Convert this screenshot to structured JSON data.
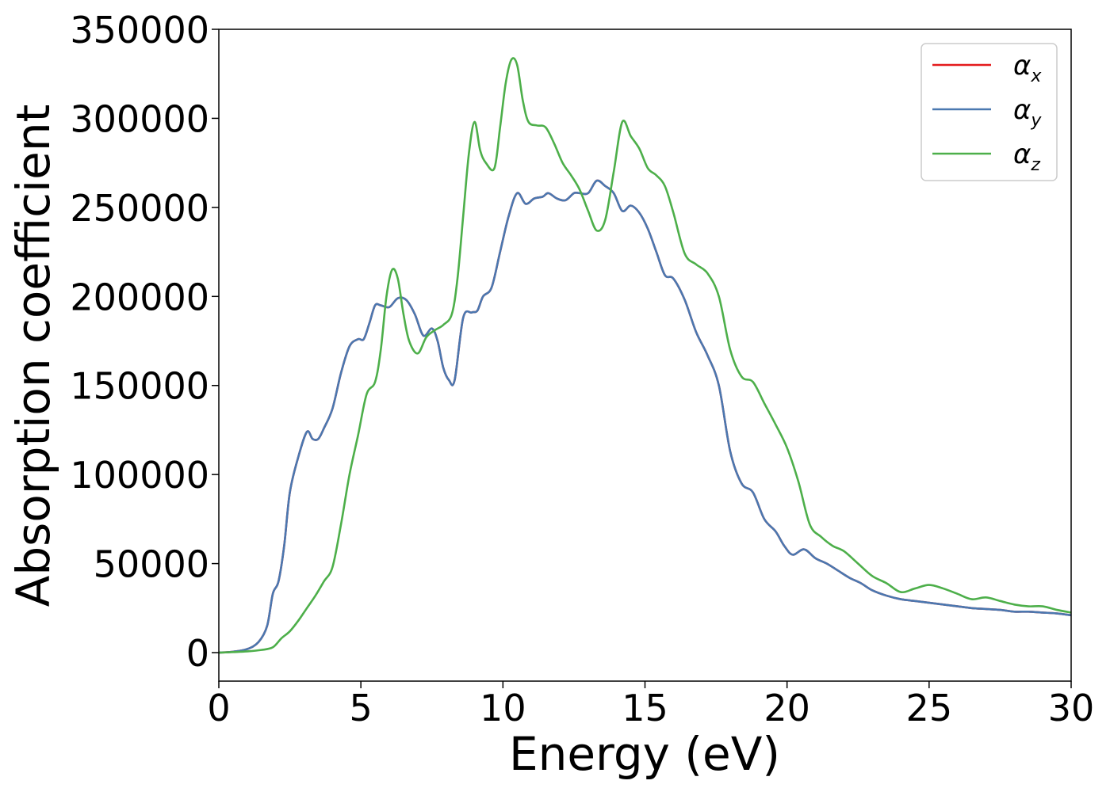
{
  "chart_data": {
    "type": "line",
    "xlabel": "Energy (eV)",
    "ylabel": "Absorption coefficient",
    "xlim": [
      0,
      30
    ],
    "ylim": [
      -16000,
      350000
    ],
    "xticks": [
      0,
      5,
      10,
      15,
      20,
      25,
      30
    ],
    "yticks": [
      0,
      50000,
      100000,
      150000,
      200000,
      250000,
      300000,
      350000
    ],
    "xtick_labels": [
      "0",
      "5",
      "10",
      "15",
      "20",
      "25",
      "30"
    ],
    "ytick_labels": [
      "0",
      "50000",
      "100000",
      "150000",
      "200000",
      "250000",
      "300000",
      "350000"
    ],
    "grid": false,
    "legend_position": "top-right",
    "series": [
      {
        "name": "α_x",
        "label_base": "α",
        "label_sub": "x",
        "color": "#e41a1c",
        "x": [
          0,
          0.5,
          1,
          1.4,
          1.7,
          1.9,
          2.1,
          2.3,
          2.5,
          2.8,
          3.1,
          3.3,
          3.5,
          3.7,
          4,
          4.3,
          4.6,
          4.9,
          5.1,
          5.3,
          5.5,
          5.7,
          6,
          6.3,
          6.6,
          6.9,
          7.2,
          7.5,
          7.7,
          7.9,
          8.1,
          8.3,
          8.6,
          8.9,
          9.1,
          9.3,
          9.6,
          9.9,
          10.2,
          10.5,
          10.8,
          11.1,
          11.4,
          11.6,
          11.9,
          12.2,
          12.5,
          12.7,
          13,
          13.3,
          13.6,
          13.9,
          14.2,
          14.5,
          14.8,
          15.1,
          15.4,
          15.7,
          16,
          16.4,
          16.8,
          17.2,
          17.6,
          18,
          18.4,
          18.8,
          19.2,
          19.6,
          19.9,
          20.2,
          20.6,
          21,
          21.4,
          21.8,
          22.2,
          22.6,
          23,
          23.5,
          24,
          24.5,
          25,
          25.5,
          26,
          26.5,
          27,
          27.5,
          28,
          28.5,
          29,
          29.5,
          30
        ],
        "y": [
          0,
          500,
          2000,
          6000,
          15000,
          33000,
          40000,
          60000,
          90000,
          110000,
          124000,
          120000,
          120000,
          126000,
          137000,
          157000,
          172000,
          176000,
          176000,
          185000,
          195000,
          195000,
          194000,
          199000,
          198000,
          190000,
          178000,
          182000,
          175000,
          160000,
          153000,
          153000,
          188000,
          191000,
          192000,
          200000,
          205000,
          225000,
          245000,
          258000,
          252000,
          255000,
          256000,
          258000,
          255000,
          254000,
          258000,
          258000,
          258000,
          265000,
          262000,
          258000,
          248000,
          251000,
          247000,
          238000,
          225000,
          212000,
          210000,
          198000,
          180000,
          167000,
          150000,
          113000,
          95000,
          90000,
          75000,
          68000,
          60000,
          55000,
          58000,
          53000,
          50000,
          46000,
          42000,
          39000,
          35000,
          32000,
          30000,
          29000,
          28000,
          27000,
          26000,
          25000,
          24500,
          24000,
          23000,
          23000,
          22500,
          22000,
          21000
        ],
        "draw_x": [
          0,
          0.5,
          1,
          1.4,
          1.7,
          1.9,
          2.1,
          2.3,
          2.5,
          2.8,
          3.1,
          3.3,
          3.5,
          3.7,
          4,
          4.3,
          4.6,
          4.9,
          5.1,
          5.3,
          5.5,
          5.7,
          6,
          6.3,
          6.6,
          6.9,
          7.2,
          7.5,
          7.7,
          7.9,
          8.1,
          8.3,
          8.6,
          8.9,
          9.1,
          9.3,
          9.6,
          9.9,
          10.2,
          10.5,
          10.8,
          11.1,
          11.4,
          11.6,
          11.9,
          12.2,
          12.5,
          12.7,
          13,
          13.3,
          13.6,
          13.9,
          14.2,
          14.5,
          14.8,
          15.1,
          15.4,
          15.7,
          16,
          16.4,
          16.8,
          17.2,
          17.6,
          18,
          18.4,
          18.8,
          19.2,
          19.6,
          19.9,
          20.2,
          20.6,
          21,
          21.4,
          21.8,
          22.2,
          22.6,
          23,
          23.5,
          24,
          24.5,
          25,
          25.5,
          26,
          26.5,
          27,
          27.5,
          28,
          28.5,
          29,
          29.5,
          30
        ]
      },
      {
        "name": "α_y",
        "label_base": "α",
        "label_sub": "y",
        "color": "#4a78b0",
        "x": [
          0,
          0.5,
          1,
          1.4,
          1.7,
          1.9,
          2.1,
          2.3,
          2.5,
          2.8,
          3.1,
          3.3,
          3.5,
          3.7,
          4,
          4.3,
          4.6,
          4.9,
          5.1,
          5.3,
          5.5,
          5.7,
          6,
          6.3,
          6.6,
          6.9,
          7.2,
          7.5,
          7.7,
          7.9,
          8.1,
          8.3,
          8.6,
          8.9,
          9.1,
          9.3,
          9.6,
          9.9,
          10.2,
          10.5,
          10.8,
          11.1,
          11.4,
          11.6,
          11.9,
          12.2,
          12.5,
          12.7,
          13,
          13.3,
          13.6,
          13.9,
          14.2,
          14.5,
          14.8,
          15.1,
          15.4,
          15.7,
          16,
          16.4,
          16.8,
          17.2,
          17.6,
          18,
          18.4,
          18.8,
          19.2,
          19.6,
          19.9,
          20.2,
          20.6,
          21,
          21.4,
          21.8,
          22.2,
          22.6,
          23,
          23.5,
          24,
          24.5,
          25,
          25.5,
          26,
          26.5,
          27,
          27.5,
          28,
          28.5,
          29,
          29.5,
          30
        ],
        "y": [
          0,
          500,
          2000,
          6000,
          15000,
          33000,
          40000,
          60000,
          90000,
          110000,
          124000,
          120000,
          120000,
          126000,
          137000,
          157000,
          172000,
          176000,
          176000,
          185000,
          195000,
          195000,
          194000,
          199000,
          198000,
          190000,
          178000,
          182000,
          175000,
          160000,
          153000,
          153000,
          188000,
          191000,
          192000,
          200000,
          205000,
          225000,
          245000,
          258000,
          252000,
          255000,
          256000,
          258000,
          255000,
          254000,
          258000,
          258000,
          258000,
          265000,
          262000,
          258000,
          248000,
          251000,
          247000,
          238000,
          225000,
          212000,
          210000,
          198000,
          180000,
          167000,
          150000,
          113000,
          95000,
          90000,
          75000,
          68000,
          60000,
          55000,
          58000,
          53000,
          50000,
          46000,
          42000,
          39000,
          35000,
          32000,
          30000,
          29000,
          28000,
          27000,
          26000,
          25000,
          24500,
          24000,
          23000,
          23000,
          22500,
          22000,
          21000
        ]
      },
      {
        "name": "α_z",
        "label_base": "α",
        "label_sub": "z",
        "color": "#4daf4a",
        "x": [
          0,
          0.5,
          1,
          1.5,
          1.9,
          2.2,
          2.5,
          2.8,
          3.1,
          3.4,
          3.7,
          4,
          4.3,
          4.6,
          4.9,
          5.2,
          5.5,
          5.7,
          5.9,
          6.1,
          6.3,
          6.5,
          6.7,
          7,
          7.3,
          7.6,
          7.9,
          8.2,
          8.4,
          8.6,
          8.8,
          9,
          9.2,
          9.4,
          9.7,
          9.9,
          10.1,
          10.3,
          10.5,
          10.7,
          10.9,
          11.2,
          11.5,
          11.8,
          12.1,
          12.4,
          12.7,
          13,
          13.3,
          13.6,
          13.9,
          14.2,
          14.5,
          14.8,
          15.1,
          15.4,
          15.7,
          16,
          16.4,
          16.8,
          17.2,
          17.6,
          18,
          18.4,
          18.8,
          19.2,
          19.6,
          20,
          20.4,
          20.8,
          21.2,
          21.6,
          22,
          22.5,
          23,
          23.5,
          24,
          24.5,
          25,
          25.5,
          26,
          26.5,
          27,
          27.5,
          28,
          28.5,
          29,
          29.5,
          30
        ],
        "y": [
          0,
          300,
          700,
          1500,
          3000,
          8000,
          12000,
          18000,
          25000,
          32000,
          40000,
          48000,
          72000,
          100000,
          122000,
          145000,
          152000,
          170000,
          200000,
          215000,
          210000,
          190000,
          175000,
          168000,
          177000,
          181000,
          184000,
          190000,
          210000,
          245000,
          280000,
          298000,
          282000,
          275000,
          272000,
          295000,
          320000,
          333000,
          330000,
          310000,
          298000,
          296000,
          295000,
          286000,
          275000,
          268000,
          260000,
          248000,
          237000,
          243000,
          270000,
          298000,
          290000,
          283000,
          272000,
          268000,
          262000,
          247000,
          224000,
          218000,
          213000,
          200000,
          170000,
          155000,
          152000,
          140000,
          128000,
          115000,
          96000,
          72000,
          65000,
          60000,
          57000,
          50000,
          43000,
          39000,
          34000,
          36000,
          38000,
          36000,
          33000,
          30000,
          31000,
          29000,
          27000,
          26000,
          26000,
          24000,
          22500
        ]
      }
    ]
  }
}
